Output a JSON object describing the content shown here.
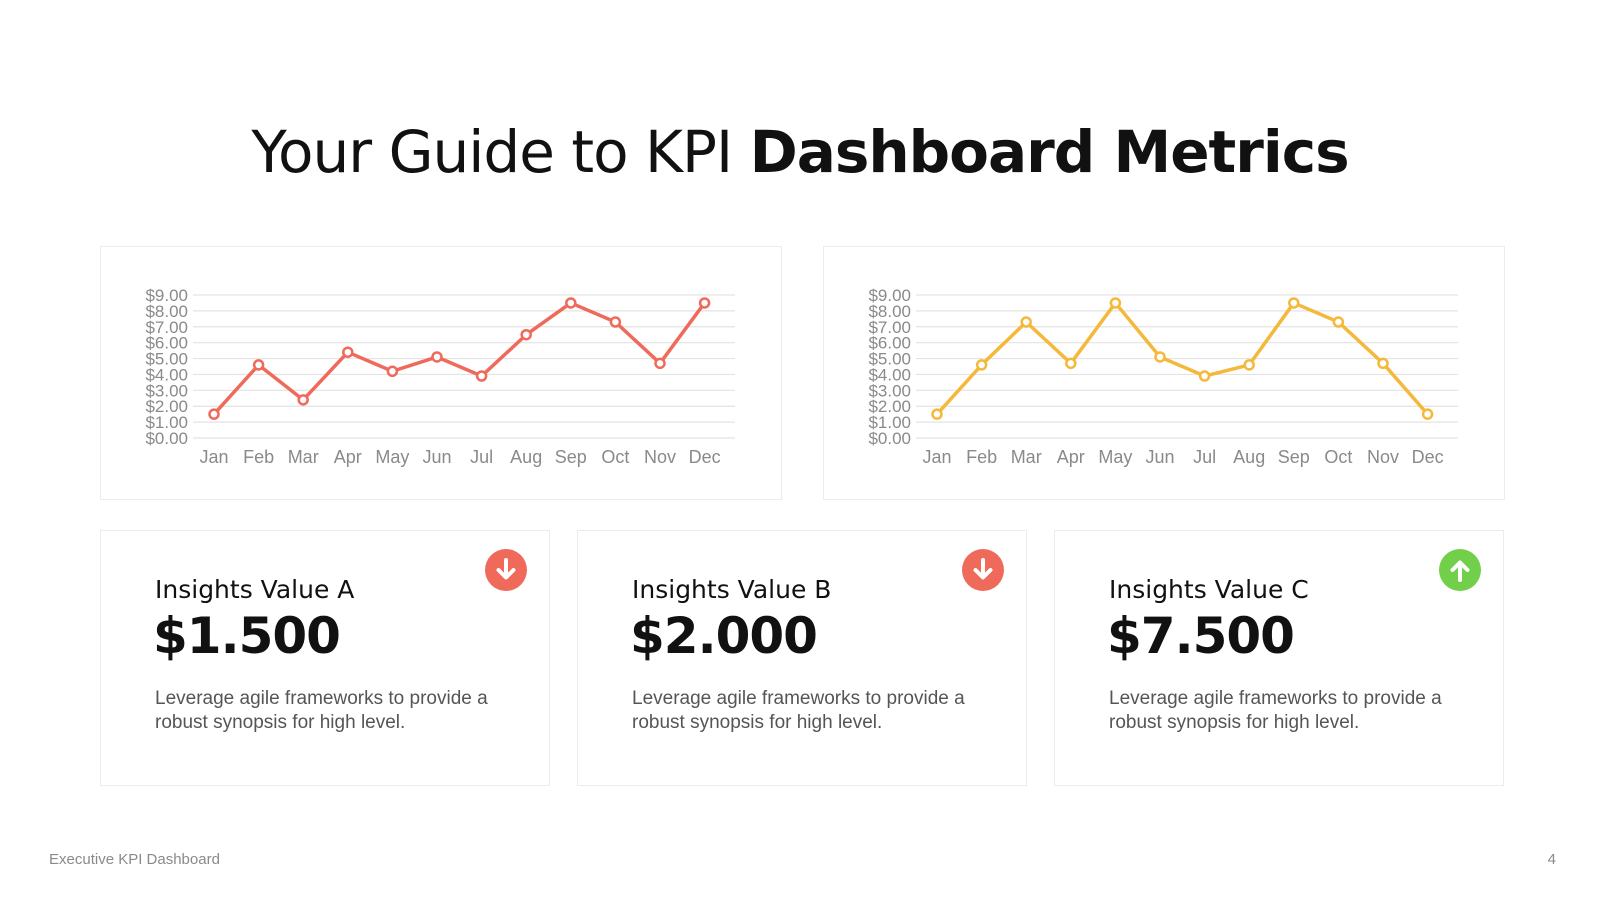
{
  "title": {
    "light": "Your Guide to KPI ",
    "bold": "Dashboard Metrics"
  },
  "chart_data": [
    {
      "type": "line",
      "categories": [
        "Jan",
        "Feb",
        "Mar",
        "Apr",
        "May",
        "Jun",
        "Jul",
        "Aug",
        "Sep",
        "Oct",
        "Nov",
        "Dec"
      ],
      "series": [
        {
          "values": [
            1.5,
            4.6,
            2.4,
            5.4,
            4.2,
            5.1,
            3.9,
            6.5,
            8.5,
            7.3,
            4.7,
            8.5
          ],
          "color": "#ef6a5b"
        }
      ],
      "ylim": [
        0,
        9
      ],
      "yticks": [
        "$0.00",
        "$1.00",
        "$2.00",
        "$3.00",
        "$4.00",
        "$5.00",
        "$6.00",
        "$7.00",
        "$8.00",
        "$9.00"
      ],
      "grid": true
    },
    {
      "type": "line",
      "categories": [
        "Jan",
        "Feb",
        "Mar",
        "Apr",
        "May",
        "Jun",
        "Jul",
        "Aug",
        "Sep",
        "Oct",
        "Nov",
        "Dec"
      ],
      "series": [
        {
          "values": [
            1.5,
            4.6,
            7.3,
            4.7,
            8.5,
            5.1,
            3.9,
            4.6,
            8.5,
            7.3,
            4.7,
            1.5
          ],
          "color": "#f4b93a"
        }
      ],
      "ylim": [
        0,
        9
      ],
      "yticks": [
        "$0.00",
        "$1.00",
        "$2.00",
        "$3.00",
        "$4.00",
        "$5.00",
        "$6.00",
        "$7.00",
        "$8.00",
        "$9.00"
      ],
      "grid": true
    }
  ],
  "cards": [
    {
      "label": "Insights Value A",
      "value": "$1.500",
      "desc": "Leverage agile frameworks to provide a robust synopsis for high level.",
      "trend_icon": "arrow-down-icon",
      "color": "#ef6a5b"
    },
    {
      "label": "Insights Value B",
      "value": "$2.000",
      "desc": "Leverage agile frameworks to provide a robust synopsis for high level.",
      "trend_icon": "arrow-down-icon",
      "color": "#ef6a5b"
    },
    {
      "label": "Insights Value C",
      "value": "$7.500",
      "desc": "Leverage agile frameworks to provide a robust synopsis for high level.",
      "trend_icon": "arrow-up-icon",
      "color": "#72cf4a"
    }
  ],
  "footer": {
    "text": "Executive KPI Dashboard",
    "page": "4"
  }
}
